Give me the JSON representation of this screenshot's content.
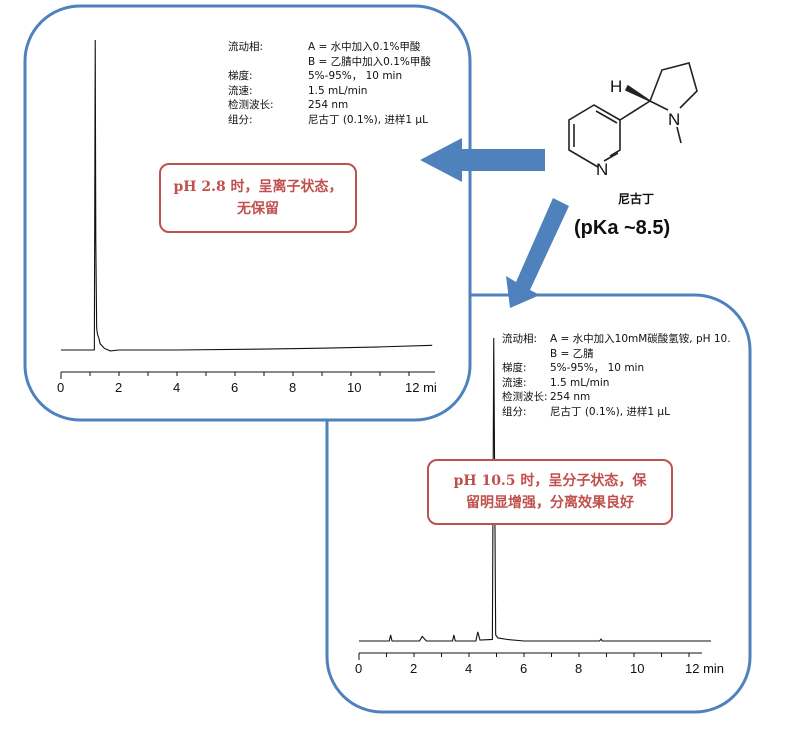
{
  "colors": {
    "panel_border": "#4f81bd",
    "arrow": "#4f81bd",
    "callout": "#c0504d",
    "trace": "#111111"
  },
  "molecule": {
    "name": "尼古丁",
    "pka": "(pKa ~8.5)",
    "atoms": {
      "h": "H",
      "n_ring": "N",
      "n_pyrrolidine": "N"
    }
  },
  "panel_acidic": {
    "conditions": [
      {
        "label": "流动相:",
        "value": "A = 水中加入0.1%甲酸"
      },
      {
        "label": "",
        "value": "B = 乙腈中加入0.1%甲酸"
      },
      {
        "label": "梯度:",
        "value": "5%-95%， 10 min"
      },
      {
        "label": "流速:",
        "value": "1.5 mL/min"
      },
      {
        "label": "检测波长:",
        "value": "254 nm"
      },
      {
        "label": "组分:",
        "value": "尼古丁 (0.1%), 进样1 μL"
      }
    ],
    "callout": [
      "pH 2.8 时，呈离子状态，",
      "无保留"
    ]
  },
  "panel_basic": {
    "conditions": [
      {
        "label": "流动相:",
        "value": "A = 水中加入10mM碳酸氢铵, pH 10."
      },
      {
        "label": "",
        "value": "B = 乙腈"
      },
      {
        "label": "梯度:",
        "value": "5%-95%， 10 min"
      },
      {
        "label": "流速:",
        "value": "1.5 mL/min"
      },
      {
        "label": "检测波长:",
        "value": "254 nm"
      },
      {
        "label": "组分:",
        "value": "尼古丁 (0.1%), 进样1 μL"
      }
    ],
    "callout": [
      "pH 10.5 时，呈分子状态，保",
      "留明显增强，分离效果良好"
    ]
  },
  "chart_data": [
    {
      "type": "line",
      "xlabel_unit": "12 mi",
      "xlim": [
        0,
        12.8
      ],
      "ticks": [
        "0",
        "2",
        "4",
        "6",
        "8",
        "10",
        "12 mi"
      ],
      "tick_values": [
        0,
        2,
        4,
        6,
        8,
        10,
        12
      ],
      "x": [
        0,
        1.15,
        1.18,
        1.2,
        1.23,
        1.26,
        1.3,
        1.35,
        1.45,
        1.5,
        1.7,
        2,
        4,
        7,
        9,
        11,
        12.8
      ],
      "y": [
        0,
        0,
        1.0,
        0.35,
        0.07,
        0.05,
        0.04,
        0.02,
        0.01,
        0.005,
        -0.003,
        0,
        0,
        0.003,
        0.006,
        0.01,
        0.015
      ]
    },
    {
      "type": "line",
      "xlabel_unit": "12 min",
      "xlim": [
        0,
        12.8
      ],
      "ticks": [
        "0",
        "2",
        "4",
        "6",
        "8",
        "10",
        "12 min"
      ],
      "tick_values": [
        0,
        2,
        4,
        6,
        8,
        10,
        12
      ],
      "x": [
        0,
        1.1,
        1.15,
        1.2,
        2.2,
        2.3,
        2.45,
        3.4,
        3.45,
        3.5,
        4.25,
        4.32,
        4.4,
        4.85,
        4.9,
        4.97,
        5.05,
        5.4,
        6,
        8.75,
        8.8,
        8.85,
        12.8
      ],
      "y": [
        0,
        0,
        0.02,
        0,
        0,
        0.015,
        0,
        0,
        0.02,
        0,
        0,
        0.03,
        0.003,
        0.005,
        1.0,
        0.02,
        0.01,
        0.005,
        0,
        0,
        0.006,
        0,
        0
      ]
    }
  ]
}
